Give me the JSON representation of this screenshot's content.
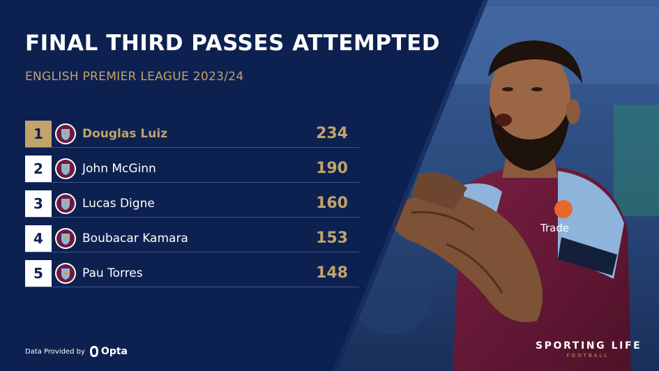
{
  "title": "FINAL THIRD PASSES ATTEMPTED",
  "subtitle": "ENGLISH PREMIER LEAGUE 2023/24",
  "rows": [
    {
      "rank": "1",
      "name": "Douglas Luiz",
      "value": "234",
      "crest": "aston-villa-crest-icon"
    },
    {
      "rank": "2",
      "name": "John McGinn",
      "value": "190",
      "crest": "aston-villa-crest-icon"
    },
    {
      "rank": "3",
      "name": "Lucas Digne",
      "value": "160",
      "crest": "aston-villa-crest-icon"
    },
    {
      "rank": "4",
      "name": "Boubacar Kamara",
      "value": "153",
      "crest": "aston-villa-crest-icon"
    },
    {
      "rank": "5",
      "name": "Pau Torres",
      "value": "148",
      "crest": "aston-villa-crest-icon"
    }
  ],
  "credit": {
    "label": "Data Provided by",
    "provider": "Opta"
  },
  "brand": {
    "name": "SPORTING LIFE",
    "section": "FOOTBALL"
  },
  "colors": {
    "navy": "#0d2150",
    "gold": "#c2a36b",
    "claret": "#6e1a3c",
    "sky_blue": "#8fb4dc"
  }
}
